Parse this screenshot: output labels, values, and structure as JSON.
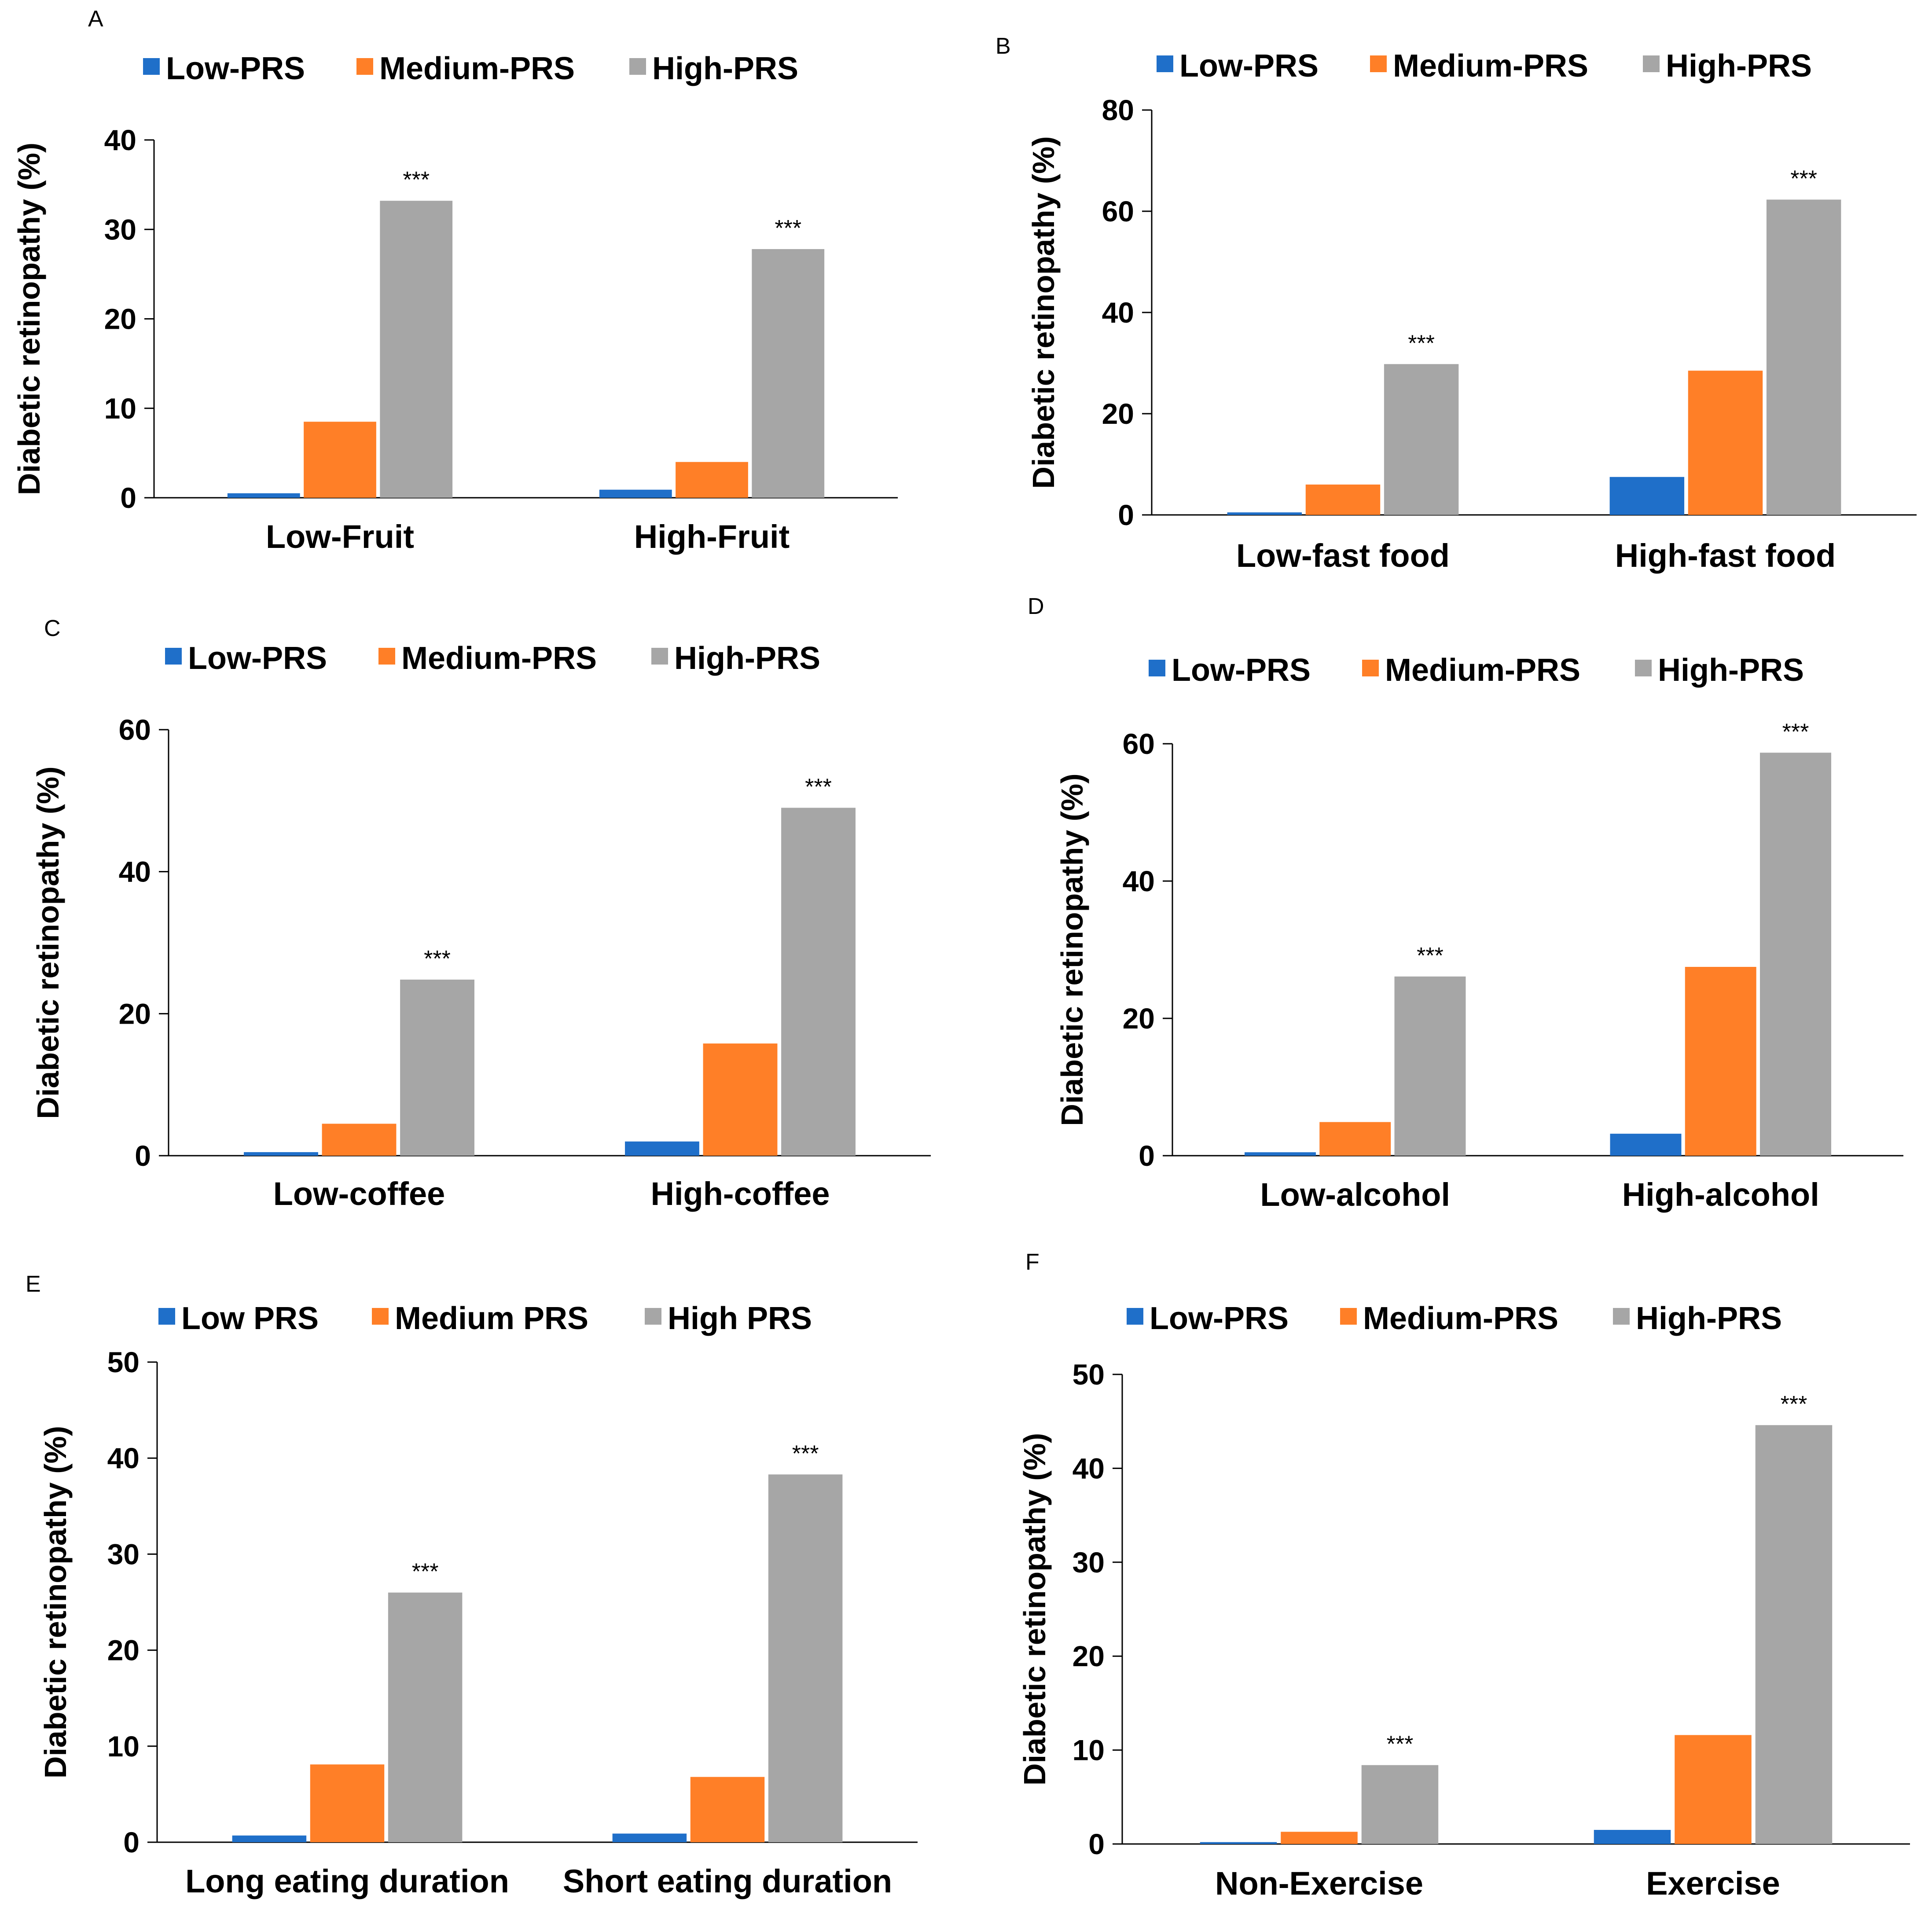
{
  "colors": {
    "low": "#1f6fc9",
    "medium": "#ff7f27",
    "high": "#a6a6a6",
    "axis": "#000000",
    "background": "#ffffff"
  },
  "chart_data": [
    {
      "id": "A",
      "panel_label": "A",
      "type": "bar",
      "title": "",
      "ylabel": "Diabetic retinopathy (%)",
      "xlabel": "",
      "ylim": [
        0,
        40
      ],
      "yticks": [
        0,
        10,
        20,
        30,
        40
      ],
      "categories": [
        "Low-Fruit",
        "High-Fruit"
      ],
      "series": [
        {
          "name": "Low-PRS",
          "values": [
            0.5,
            0.9
          ]
        },
        {
          "name": "Medium-PRS",
          "values": [
            8.5,
            4.0
          ]
        },
        {
          "name": "High-PRS",
          "values": [
            33.2,
            27.8
          ]
        }
      ],
      "annotations": [
        "***",
        "***"
      ],
      "legend": "top",
      "grid": false
    },
    {
      "id": "B",
      "panel_label": "B",
      "type": "bar",
      "title": "",
      "ylabel": "Diabetic retinopathy (%)",
      "xlabel": "",
      "ylim": [
        0,
        80
      ],
      "yticks": [
        0,
        20,
        40,
        60,
        80
      ],
      "categories": [
        "Low-fast food",
        "High-fast food"
      ],
      "series": [
        {
          "name": "Low-PRS",
          "values": [
            0.5,
            7.5
          ]
        },
        {
          "name": "Medium-PRS",
          "values": [
            6.0,
            28.5
          ]
        },
        {
          "name": "High-PRS",
          "values": [
            29.8,
            62.3
          ]
        }
      ],
      "annotations": [
        "***",
        "***"
      ],
      "legend": "top",
      "grid": false
    },
    {
      "id": "C",
      "panel_label": "C",
      "type": "bar",
      "title": "",
      "ylabel": "Diabetic retinopathy (%)",
      "xlabel": "",
      "ylim": [
        0,
        60
      ],
      "yticks": [
        0,
        20,
        40,
        60
      ],
      "categories": [
        "Low-coffee",
        "High-coffee"
      ],
      "series": [
        {
          "name": "Low-PRS",
          "values": [
            0.5,
            2.0
          ]
        },
        {
          "name": "Medium-PRS",
          "values": [
            4.5,
            15.8
          ]
        },
        {
          "name": "High-PRS",
          "values": [
            24.8,
            49.0
          ]
        }
      ],
      "annotations": [
        "***",
        "***"
      ],
      "legend": "top",
      "grid": false
    },
    {
      "id": "D",
      "panel_label": "D",
      "type": "bar",
      "title": "",
      "ylabel": "Diabetic retinopathy (%)",
      "xlabel": "",
      "ylim": [
        0,
        60
      ],
      "yticks": [
        0,
        20,
        40,
        60
      ],
      "categories": [
        "Low-alcohol",
        "High-alcohol"
      ],
      "series": [
        {
          "name": "Low-PRS",
          "values": [
            0.5,
            3.2
          ]
        },
        {
          "name": "Medium-PRS",
          "values": [
            4.9,
            27.5
          ]
        },
        {
          "name": "High-PRS",
          "values": [
            26.1,
            58.7
          ]
        }
      ],
      "annotations": [
        "***",
        "***"
      ],
      "legend": "top",
      "grid": false
    },
    {
      "id": "E",
      "panel_label": "E",
      "type": "bar",
      "title": "",
      "ylabel": "Diabetic retinopathy (%)",
      "xlabel": "",
      "ylim": [
        0,
        50
      ],
      "yticks": [
        0,
        10,
        20,
        30,
        40,
        50
      ],
      "categories": [
        "Long eating duration",
        "Short eating duration"
      ],
      "series": [
        {
          "name": "Low PRS",
          "values": [
            0.7,
            0.9
          ]
        },
        {
          "name": "Medium PRS",
          "values": [
            8.1,
            6.8
          ]
        },
        {
          "name": "High PRS",
          "values": [
            26.0,
            38.3
          ]
        }
      ],
      "annotations": [
        "***",
        "***"
      ],
      "legend": "top",
      "grid": false
    },
    {
      "id": "F",
      "panel_label": "F",
      "type": "bar",
      "title": "",
      "ylabel": "Diabetic retinopathy (%)",
      "xlabel": "",
      "ylim": [
        0,
        50
      ],
      "yticks": [
        0,
        10,
        20,
        30,
        40,
        50
      ],
      "categories": [
        "Non-Exercise",
        "Exercise"
      ],
      "series": [
        {
          "name": "Low-PRS",
          "values": [
            0.2,
            1.5
          ]
        },
        {
          "name": "Medium-PRS",
          "values": [
            1.3,
            11.6
          ]
        },
        {
          "name": "High-PRS",
          "values": [
            8.4,
            44.6
          ]
        }
      ],
      "annotations": [
        "***",
        "***"
      ],
      "legend": "top",
      "grid": false
    }
  ]
}
